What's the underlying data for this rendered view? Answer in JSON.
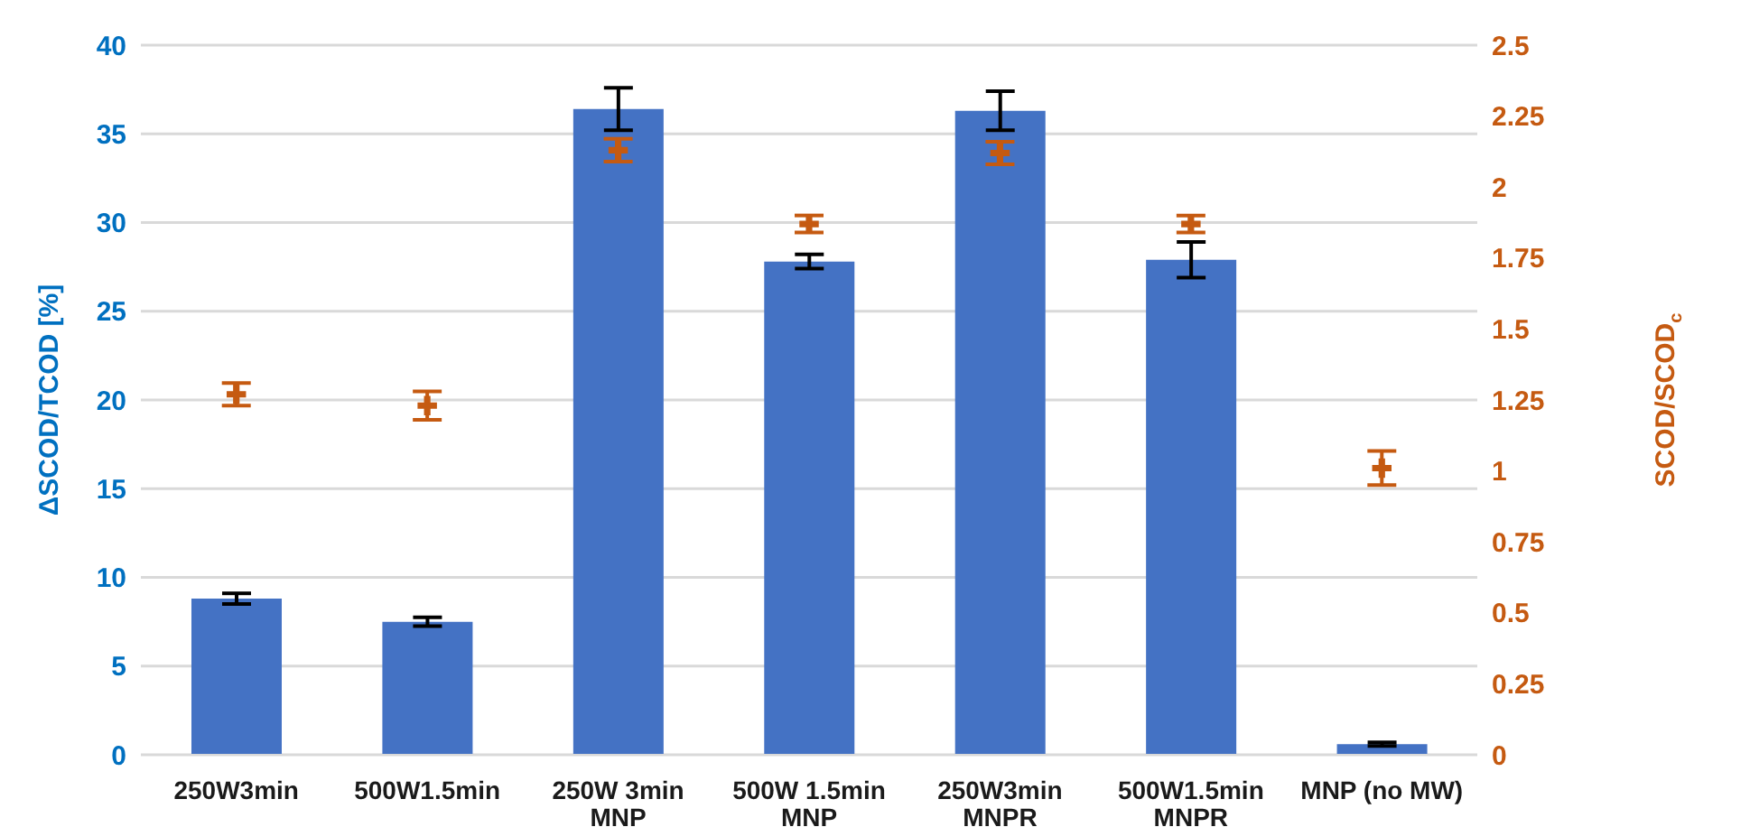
{
  "chart_data": {
    "type": "bar",
    "categories": [
      "250W3min",
      "500W1.5min",
      "250W 3min\nMNP",
      "500W 1.5min\nMNP",
      "250W3min\nMNPR",
      "500W1.5min\nMNPR",
      "MNP (no MW)"
    ],
    "series": [
      {
        "color": "#4472c4",
        "values": [
          8.8,
          7.5,
          36.4,
          27.8,
          36.3,
          27.9,
          0.6
        ],
        "errors": [
          0.3,
          0.25,
          1.2,
          0.4,
          1.1,
          1.0,
          0.1
        ]
      },
      {
        "type": "scatter",
        "axis": "y2",
        "color": "#c55a11",
        "marker": "cross",
        "values": [
          1.27,
          1.23,
          2.13,
          1.87,
          2.12,
          1.87,
          1.01
        ],
        "errors": [
          0.04,
          0.05,
          0.04,
          0.03,
          0.04,
          0.03,
          0.06
        ]
      }
    ],
    "ylabel": "ΔSCOD/TCOD [%]",
    "y2label": "SCOD/SCOD$_{c}$",
    "ylim": [
      0,
      40
    ],
    "yticks": [
      0,
      5,
      10,
      15,
      20,
      25,
      30,
      35,
      40
    ],
    "y2lim": [
      0,
      2.5
    ],
    "y2ticks": [
      0,
      0.25,
      0.5,
      0.75,
      1,
      1.25,
      1.5,
      1.75,
      2,
      2.25,
      2.5
    ],
    "grid": "y",
    "legend": false
  }
}
